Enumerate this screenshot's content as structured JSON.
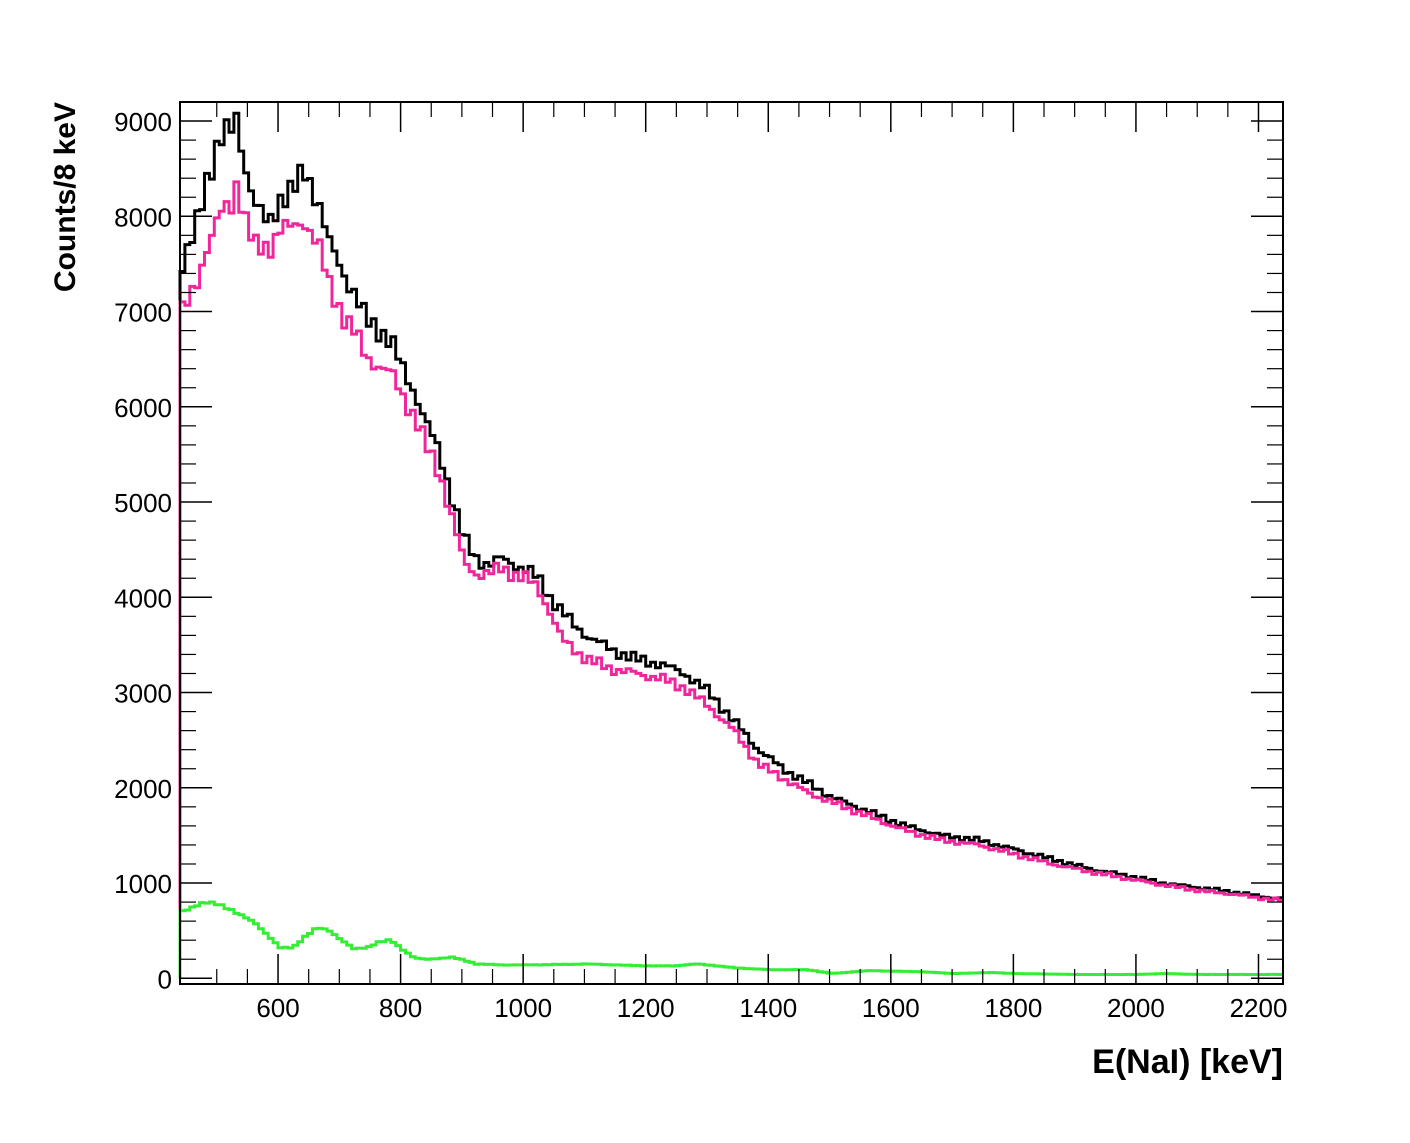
{
  "chart_data": {
    "type": "line",
    "style": "step-histogram",
    "xlabel": "E(NaI) [keV]",
    "ylabel": "Counts/8 keV",
    "xlim": [
      440,
      2240
    ],
    "ylim": [
      -60,
      9200
    ],
    "x_ticks": [
      600,
      800,
      1000,
      1200,
      1400,
      1600,
      1800,
      2000,
      2200
    ],
    "y_ticks": [
      0,
      1000,
      2000,
      3000,
      4000,
      5000,
      6000,
      7000,
      8000,
      9000
    ],
    "grid": false,
    "legend": "none",
    "bin_width": 8,
    "series": [
      {
        "color": "#000000",
        "x": [
          440,
          460,
          480,
          500,
          520,
          530,
          540,
          560,
          580,
          600,
          620,
          640,
          660,
          680,
          700,
          720,
          740,
          760,
          780,
          800,
          820,
          840,
          860,
          880,
          900,
          920,
          940,
          960,
          980,
          1000,
          1020,
          1040,
          1060,
          1080,
          1100,
          1140,
          1180,
          1220,
          1260,
          1300,
          1340,
          1380,
          1420,
          1460,
          1500,
          1560,
          1620,
          1680,
          1740,
          1800,
          1860,
          1920,
          1980,
          2040,
          2100,
          2160,
          2200,
          2240
        ],
        "y": [
          7500,
          7800,
          8400,
          8800,
          8900,
          9050,
          8600,
          8100,
          7900,
          8200,
          8250,
          8480,
          8200,
          7700,
          7450,
          7200,
          6900,
          6820,
          6700,
          6380,
          6150,
          5800,
          5500,
          5050,
          4600,
          4400,
          4350,
          4400,
          4350,
          4300,
          4200,
          4000,
          3850,
          3700,
          3600,
          3450,
          3350,
          3300,
          3200,
          3000,
          2700,
          2400,
          2200,
          2050,
          1900,
          1750,
          1600,
          1500,
          1450,
          1350,
          1250,
          1150,
          1080,
          1000,
          950,
          900,
          860,
          830
        ]
      },
      {
        "color": "#f0269a",
        "x": [
          440,
          460,
          480,
          500,
          520,
          530,
          540,
          560,
          580,
          600,
          620,
          640,
          660,
          680,
          700,
          720,
          740,
          760,
          780,
          800,
          820,
          840,
          860,
          880,
          900,
          920,
          940,
          960,
          980,
          1000,
          1020,
          1040,
          1060,
          1080,
          1100,
          1140,
          1180,
          1220,
          1260,
          1300,
          1340,
          1380,
          1420,
          1460,
          1500,
          1560,
          1620,
          1680,
          1740,
          1800,
          1860,
          1920,
          1980,
          2040,
          2100,
          2160,
          2200,
          2240
        ],
        "y": [
          7000,
          7200,
          7700,
          8000,
          8100,
          8400,
          8050,
          7650,
          7650,
          7900,
          7850,
          7950,
          7750,
          7250,
          7000,
          6800,
          6500,
          6450,
          6350,
          6100,
          5900,
          5550,
          5300,
          4850,
          4350,
          4250,
          4250,
          4300,
          4250,
          4200,
          4100,
          3850,
          3550,
          3450,
          3350,
          3250,
          3200,
          3150,
          3050,
          2850,
          2600,
          2250,
          2100,
          1950,
          1850,
          1700,
          1550,
          1450,
          1400,
          1300,
          1200,
          1120,
          1050,
          980,
          920,
          880,
          840,
          820
        ]
      },
      {
        "color": "#33ee33",
        "x": [
          440,
          450,
          460,
          470,
          480,
          500,
          520,
          540,
          560,
          580,
          600,
          620,
          640,
          660,
          680,
          700,
          720,
          740,
          760,
          780,
          800,
          820,
          840,
          860,
          880,
          900,
          920,
          960,
          1000,
          1100,
          1200,
          1240,
          1280,
          1300,
          1340,
          1400,
          1460,
          1500,
          1560,
          1640,
          1700,
          1760,
          1800,
          1900,
          2000,
          2040,
          2100,
          2200,
          2240
        ],
        "y": [
          700,
          720,
          760,
          790,
          800,
          770,
          720,
          650,
          570,
          450,
          320,
          320,
          440,
          530,
          500,
          400,
          310,
          320,
          380,
          400,
          300,
          210,
          200,
          210,
          220,
          190,
          150,
          140,
          140,
          150,
          130,
          130,
          150,
          140,
          110,
          90,
          90,
          50,
          80,
          70,
          50,
          60,
          50,
          40,
          40,
          50,
          40,
          40,
          40
        ]
      }
    ]
  }
}
